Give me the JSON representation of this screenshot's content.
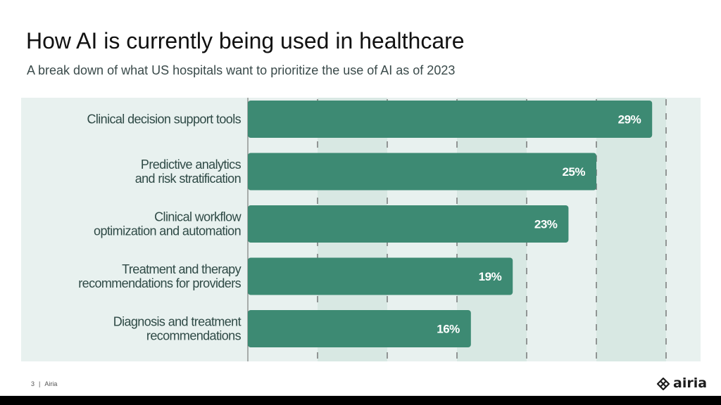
{
  "title": "How AI is currently being used in healthcare",
  "subtitle": "A break down of what US hospitals want to prioritize the use of AI as of 2023",
  "footer": {
    "page_number": "3",
    "separator": "|",
    "company": "Airia"
  },
  "logo": {
    "text": "airia",
    "icon": "diamond-knot-icon"
  },
  "colors": {
    "bar": "#3d8a73",
    "panel_light": "#e8f1ef",
    "panel_dark": "#d8e8e3",
    "gridline": "#666666",
    "category_text": "#2f4a46",
    "value_text": "#ffffff"
  },
  "chart_data": {
    "type": "bar",
    "orientation": "horizontal",
    "title": "How AI is currently being used in healthcare",
    "subtitle": "A break down of what US hospitals want to prioritize the use of AI as of 2023",
    "categories": [
      [
        "Clinical decision support tools"
      ],
      [
        "Predictive analytics",
        "and risk stratification"
      ],
      [
        "Clinical workflow",
        "optimization and automation"
      ],
      [
        "Treatment and therapy",
        "recommendations for providers"
      ],
      [
        "Diagnosis and treatment",
        "recommendations"
      ]
    ],
    "values": [
      29,
      25,
      23,
      19,
      16
    ],
    "value_labels": [
      "29%",
      "25%",
      "23%",
      "19%",
      "16%"
    ],
    "unit": "%",
    "xlim": [
      0,
      30
    ],
    "gridline_step": 5,
    "gridlines": "dashed",
    "legend": "none"
  }
}
